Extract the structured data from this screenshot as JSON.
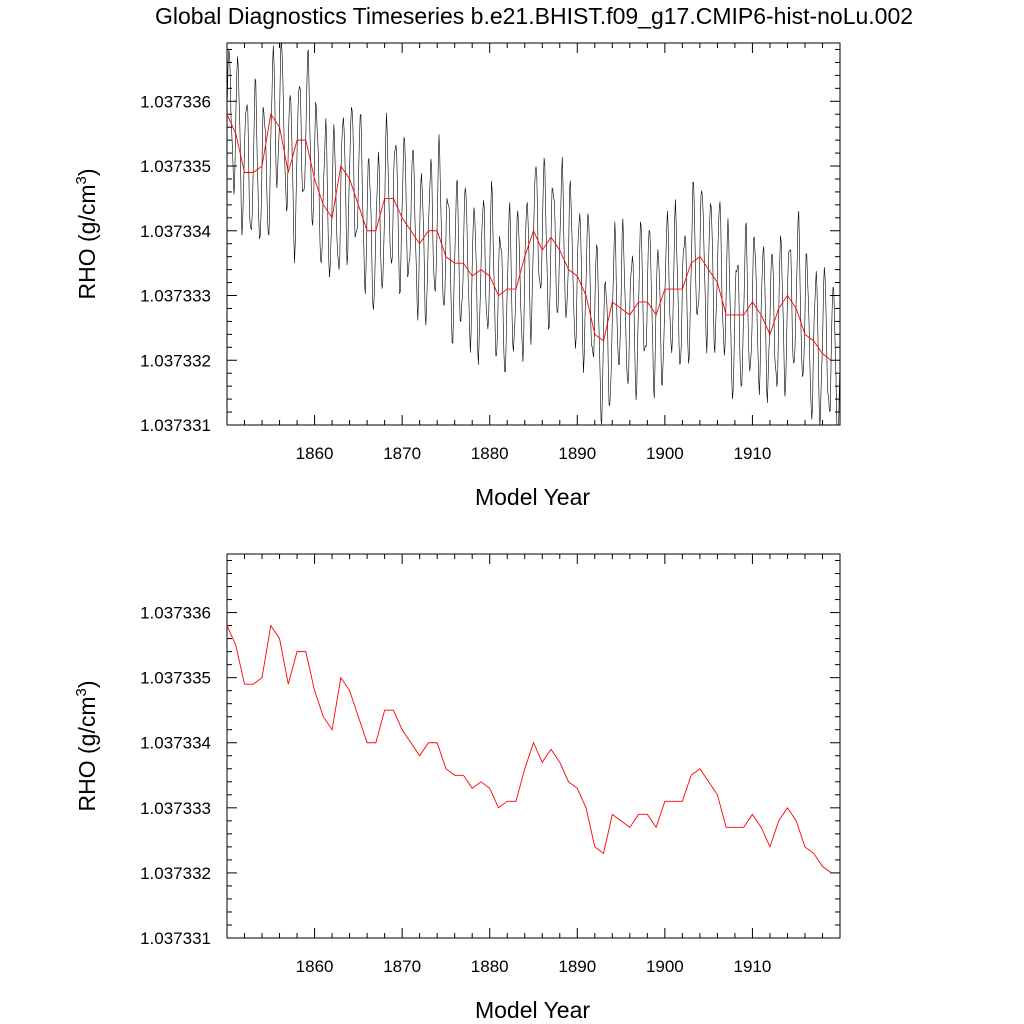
{
  "title": "Global Diagnostics Timeseries b.e21.BHIST.f09_g17.CMIP6-hist-noLu.002",
  "chart_data": [
    {
      "type": "line",
      "panel": "top",
      "xlabel": "Model Year",
      "ylabel": "RHO (g/cm",
      "ylabel_sup": "3",
      "ylabel_close": ")",
      "xlim": [
        1850,
        1920
      ],
      "ylim": [
        1.037331,
        1.0373369
      ],
      "xticks": [
        1860,
        1870,
        1880,
        1890,
        1900,
        1910
      ],
      "xtick_labels": [
        "1860",
        "1870",
        "1880",
        "1890",
        "1900",
        "1910"
      ],
      "yticks": [
        1.037331,
        1.037332,
        1.037333,
        1.037334,
        1.037335,
        1.037336
      ],
      "ytick_labels": [
        "1.037331",
        "1.037332",
        "1.037333",
        "1.037334",
        "1.037335",
        "1.037336"
      ],
      "grid": false,
      "series": [
        {
          "kind": "monthly",
          "color": "#000000",
          "x_start": 1850.04,
          "x_step": 0.0833333,
          "annual_mean_ref": 1,
          "seasonal_amplitude": 1.1e-06,
          "values_note": ""
        },
        {
          "kind": "annual",
          "color": "#ff0000",
          "x": [
            1850,
            1851,
            1852,
            1853,
            1854,
            1855,
            1856,
            1857,
            1858,
            1859,
            1860,
            1861,
            1862,
            1863,
            1864,
            1865,
            1866,
            1867,
            1868,
            1869,
            1870,
            1871,
            1872,
            1873,
            1874,
            1875,
            1876,
            1877,
            1878,
            1879,
            1880,
            1881,
            1882,
            1883,
            1884,
            1885,
            1886,
            1887,
            1888,
            1889,
            1890,
            1891,
            1892,
            1893,
            1894,
            1895,
            1896,
            1897,
            1898,
            1899,
            1900,
            1901,
            1902,
            1903,
            1904,
            1905,
            1906,
            1907,
            1908,
            1909,
            1910,
            1911,
            1912,
            1913,
            1914,
            1915,
            1916,
            1917,
            1918,
            1919
          ],
          "y": [
            1.0373358,
            1.0373355,
            1.0373349,
            1.0373349,
            1.037335,
            1.0373358,
            1.0373356,
            1.0373349,
            1.0373354,
            1.0373354,
            1.0373348,
            1.0373344,
            1.0373342,
            1.037335,
            1.0373348,
            1.0373344,
            1.037334,
            1.037334,
            1.0373345,
            1.0373345,
            1.0373342,
            1.037334,
            1.0373338,
            1.037334,
            1.037334,
            1.0373336,
            1.0373335,
            1.0373335,
            1.0373333,
            1.0373334,
            1.0373333,
            1.037333,
            1.0373331,
            1.0373331,
            1.0373336,
            1.037334,
            1.0373337,
            1.0373339,
            1.0373337,
            1.0373334,
            1.0373333,
            1.037333,
            1.0373324,
            1.0373323,
            1.0373329,
            1.0373328,
            1.0373327,
            1.0373329,
            1.0373329,
            1.0373327,
            1.0373331,
            1.0373331,
            1.0373331,
            1.0373335,
            1.0373336,
            1.0373334,
            1.0373332,
            1.0373327,
            1.0373327,
            1.0373327,
            1.0373329,
            1.0373327,
            1.0373324,
            1.0373328,
            1.037333,
            1.0373328,
            1.0373324,
            1.0373323,
            1.0373321,
            1.037332
          ]
        }
      ]
    },
    {
      "type": "line",
      "panel": "bottom",
      "xlabel": "Model Year",
      "ylabel": "RHO (g/cm",
      "ylabel_sup": "3",
      "ylabel_close": ")",
      "xlim": [
        1850,
        1920
      ],
      "ylim": [
        1.037331,
        1.0373369
      ],
      "xticks": [
        1860,
        1870,
        1880,
        1890,
        1900,
        1910
      ],
      "xtick_labels": [
        "1860",
        "1870",
        "1880",
        "1890",
        "1900",
        "1910"
      ],
      "yticks": [
        1.037331,
        1.037332,
        1.037333,
        1.037334,
        1.037335,
        1.037336
      ],
      "ytick_labels": [
        "1.037331",
        "1.037332",
        "1.037333",
        "1.037334",
        "1.037335",
        "1.037336"
      ],
      "grid": false,
      "series": [
        {
          "kind": "annual",
          "color": "#ff0000",
          "x": [
            1850,
            1851,
            1852,
            1853,
            1854,
            1855,
            1856,
            1857,
            1858,
            1859,
            1860,
            1861,
            1862,
            1863,
            1864,
            1865,
            1866,
            1867,
            1868,
            1869,
            1870,
            1871,
            1872,
            1873,
            1874,
            1875,
            1876,
            1877,
            1878,
            1879,
            1880,
            1881,
            1882,
            1883,
            1884,
            1885,
            1886,
            1887,
            1888,
            1889,
            1890,
            1891,
            1892,
            1893,
            1894,
            1895,
            1896,
            1897,
            1898,
            1899,
            1900,
            1901,
            1902,
            1903,
            1904,
            1905,
            1906,
            1907,
            1908,
            1909,
            1910,
            1911,
            1912,
            1913,
            1914,
            1915,
            1916,
            1917,
            1918,
            1919
          ],
          "y": [
            1.0373358,
            1.0373355,
            1.0373349,
            1.0373349,
            1.037335,
            1.0373358,
            1.0373356,
            1.0373349,
            1.0373354,
            1.0373354,
            1.0373348,
            1.0373344,
            1.0373342,
            1.037335,
            1.0373348,
            1.0373344,
            1.037334,
            1.037334,
            1.0373345,
            1.0373345,
            1.0373342,
            1.037334,
            1.0373338,
            1.037334,
            1.037334,
            1.0373336,
            1.0373335,
            1.0373335,
            1.0373333,
            1.0373334,
            1.0373333,
            1.037333,
            1.0373331,
            1.0373331,
            1.0373336,
            1.037334,
            1.0373337,
            1.0373339,
            1.0373337,
            1.0373334,
            1.0373333,
            1.037333,
            1.0373324,
            1.0373323,
            1.0373329,
            1.0373328,
            1.0373327,
            1.0373329,
            1.0373329,
            1.0373327,
            1.0373331,
            1.0373331,
            1.0373331,
            1.0373335,
            1.0373336,
            1.0373334,
            1.0373332,
            1.0373327,
            1.0373327,
            1.0373327,
            1.0373329,
            1.0373327,
            1.0373324,
            1.0373328,
            1.037333,
            1.0373328,
            1.0373324,
            1.0373323,
            1.0373321,
            1.037332
          ]
        }
      ]
    }
  ]
}
